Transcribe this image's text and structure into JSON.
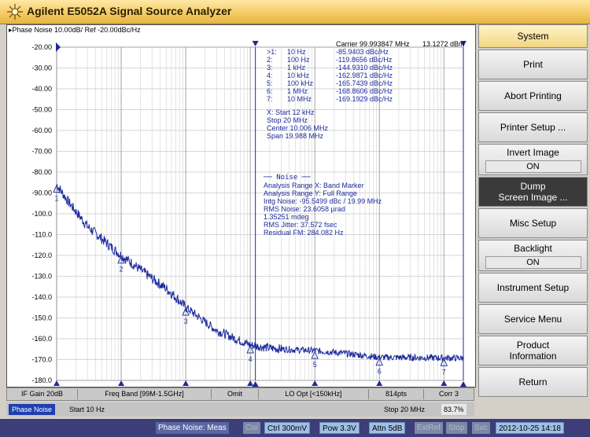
{
  "window": {
    "title": "Agilent E5052A Signal Source Analyzer"
  },
  "trace_header": "▸Phase Noise 10.00dB/ Ref -20.00dBc/Hz",
  "plot": {
    "carrier_readout": "Carrier 99.993847 MHz",
    "level_readout": "13.1272 dBm",
    "y_ticks": [
      "-20.00",
      "-30.00",
      "-40.00",
      "-50.00",
      "-60.00",
      "-70.00",
      "-80.00",
      "-90.00",
      "-100.0",
      "-110.0",
      "-120.0",
      "-130.0",
      "-140.0",
      "-150.0",
      "-160.0",
      "-170.0",
      "-180.0"
    ],
    "markers": [
      {
        "id": "1",
        "label": ">1:",
        "freq": "10 Hz",
        "value": "-85.9403 dBc/Hz",
        "dec": 0.0
      },
      {
        "id": "2",
        "label": "2:",
        "freq": "100 Hz",
        "value": "-119.8656 dBc/Hz",
        "dec": 1.0
      },
      {
        "id": "3",
        "label": "3:",
        "freq": "1 kHz",
        "value": "-144.9310 dBc/Hz",
        "dec": 2.0
      },
      {
        "id": "4",
        "label": "4:",
        "freq": "10 kHz",
        "value": "-162.9871 dBc/Hz",
        "dec": 3.0
      },
      {
        "id": "5",
        "label": "5:",
        "freq": "100 kHz",
        "value": "-165.7439 dBc/Hz",
        "dec": 4.0
      },
      {
        "id": "6",
        "label": "6:",
        "freq": "1 MHz",
        "value": "-168.8606 dBc/Hz",
        "dec": 5.0
      },
      {
        "id": "7",
        "label": "7:",
        "freq": "10 MHz",
        "value": "-169.1929 dBc/Hz",
        "dec": 6.0
      }
    ],
    "range_lines": [
      "X: Start 12 kHz",
      "   Stop 20 MHz",
      "  Center 10.006 MHz",
      "    Span 19.988 MHz"
    ],
    "noise_title": "── Noise ──",
    "analysis_lines": [
      "Analysis Range X: Band Marker",
      "Analysis Range Y: Full Range",
      "Intg Noise: -95.5499 dBc / 19.99 MHz",
      " RMS Noise: 23.6058 µrad",
      "            1.35251 mdeg",
      "RMS Jitter: 37.572 fsec",
      "Residual FM: 284.082 Hz"
    ]
  },
  "chart_data": {
    "type": "line",
    "title": "",
    "xlabel": "",
    "ylabel": "",
    "x_scale": "log",
    "xlim_hz": [
      10,
      20000000
    ],
    "ylim": [
      -180,
      -20
    ],
    "grid": true,
    "series": [
      {
        "x_hz": [
          10,
          15,
          20,
          30,
          50,
          70,
          100,
          150,
          200,
          300,
          500,
          700,
          1000,
          1500,
          2000,
          3000,
          5000,
          7000,
          10000,
          20000,
          50000,
          100000,
          200000,
          500000,
          1000000,
          2000000,
          5000000,
          10000000,
          20000000
        ],
        "y_dbc_hz": [
          -85.9,
          -94,
          -99,
          -106,
          -112,
          -116,
          -119.9,
          -124,
          -127,
          -131,
          -136,
          -140,
          -144.9,
          -149,
          -152,
          -156,
          -159,
          -161,
          -163,
          -164.5,
          -165.3,
          -165.7,
          -166.5,
          -167.8,
          -168.9,
          -169,
          -169.1,
          -169.2,
          -169.3
        ]
      }
    ],
    "band_markers_hz": [
      12000,
      20000000
    ]
  },
  "status_bar": {
    "items": [
      "IF Gain 20dB",
      "Freq Band [99M-1.5GHz]",
      "Omit",
      "LO Opt [<150kHz]",
      "814pts",
      "Corr 3"
    ]
  },
  "channel_bar": {
    "trace_name": "Phase Noise",
    "start": "Start 10 Hz",
    "stop": "Stop 20 MHz",
    "progress": "83.7%"
  },
  "bottom_bar": {
    "items": [
      {
        "label": "Phase Noise: Meas",
        "style": "dk"
      },
      {
        "label": "Cor",
        "style": "dim"
      },
      {
        "label": "Ctrl 300mV",
        "style": "lit"
      },
      {
        "label": "Pow 3.3V",
        "style": "lit"
      },
      {
        "label": "Attn 5dB",
        "style": "lit"
      },
      {
        "label": "ExtRef",
        "style": "dim"
      },
      {
        "label": "Stop",
        "style": "dim"
      },
      {
        "label": "Svc",
        "style": "dim"
      },
      {
        "label": "2012-10-25 14:18",
        "style": "lit"
      }
    ]
  },
  "softkeys": {
    "system": "System",
    "print": "Print",
    "abort_printing": "Abort Printing",
    "printer_setup": "Printer Setup ...",
    "invert_image": "Invert Image",
    "invert_image_value": "ON",
    "dump_screen_line1": "Dump",
    "dump_screen_line2": "Screen Image ...",
    "misc_setup": "Misc Setup",
    "backlight": "Backlight",
    "backlight_value": "ON",
    "instrument_setup": "Instrument Setup",
    "service_menu": "Service Menu",
    "product_info_line1": "Product",
    "product_info_line2": "Information",
    "return": "Return"
  },
  "colors": {
    "trace": "#1c2a9c",
    "marker": "#2a3a9a",
    "title_bar": "#f3c860",
    "bottom_bar": "#3d3d7a",
    "channel_tag": "#1f3fb0"
  }
}
